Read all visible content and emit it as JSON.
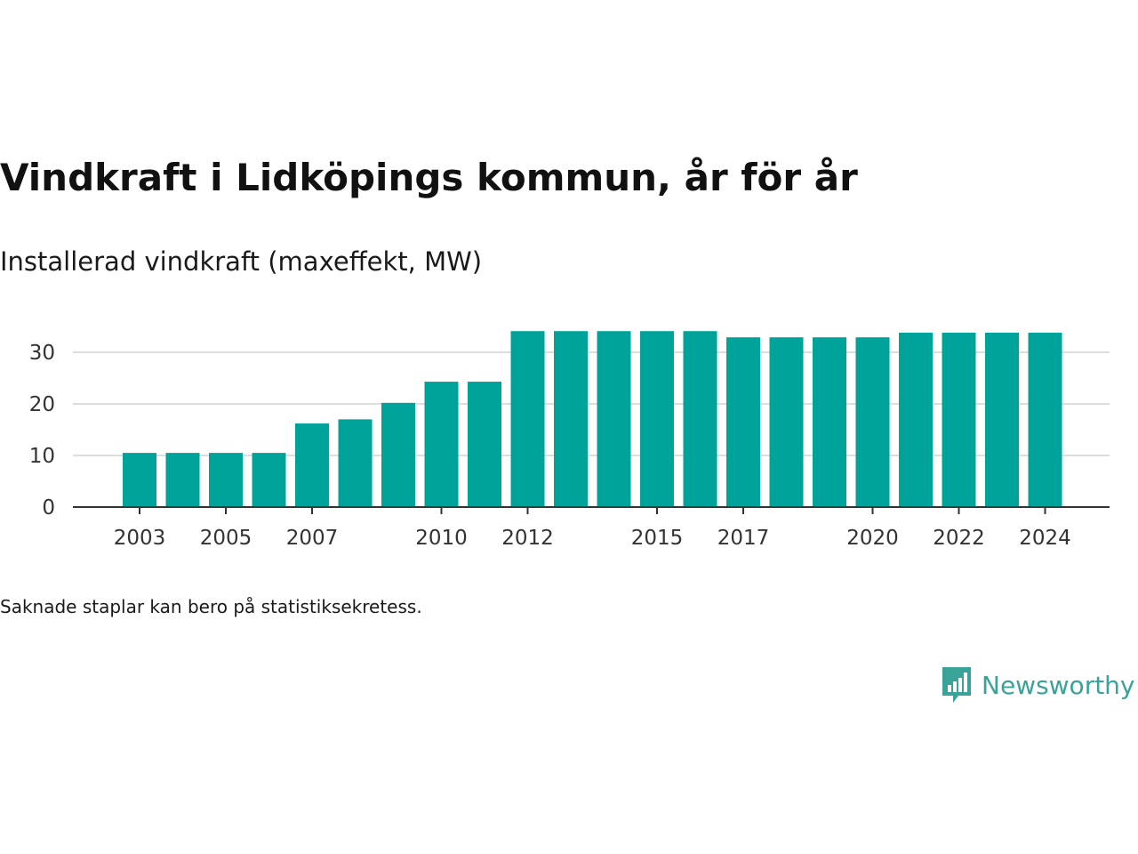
{
  "title": "Vindkraft i Lidköpings kommun, år för år",
  "subtitle": "Installerad vindkraft (maxeffekt, MW)",
  "note": "Saknade staplar kan bero på statistiksekretess.",
  "brand": {
    "name": "Newsworthy",
    "icon": "newsworthy-logo-icon",
    "color": "#3aa399"
  },
  "chart_data": {
    "type": "bar",
    "categories": [
      2003,
      2004,
      2005,
      2006,
      2007,
      2008,
      2009,
      2010,
      2011,
      2012,
      2013,
      2014,
      2015,
      2016,
      2017,
      2018,
      2019,
      2020,
      2021,
      2022,
      2023,
      2024
    ],
    "values": [
      10.5,
      10.5,
      10.5,
      10.5,
      16.2,
      17,
      20.2,
      24.3,
      24.3,
      34.1,
      34.1,
      34.1,
      34.1,
      34.1,
      32.9,
      32.9,
      32.9,
      32.9,
      33.8,
      33.8,
      33.8,
      33.8
    ],
    "x_tick_labels": [
      "2003",
      "2005",
      "2007",
      "2010",
      "2012",
      "2015",
      "2017",
      "2020",
      "2022",
      "2024"
    ],
    "y_ticks": [
      0,
      10,
      20,
      30
    ],
    "ylim": [
      0,
      35
    ],
    "xlabel": "",
    "ylabel": "",
    "grid": true,
    "bar_color": "#00a39a",
    "grid_color": "#dddddd",
    "axis_color": "#333333"
  }
}
